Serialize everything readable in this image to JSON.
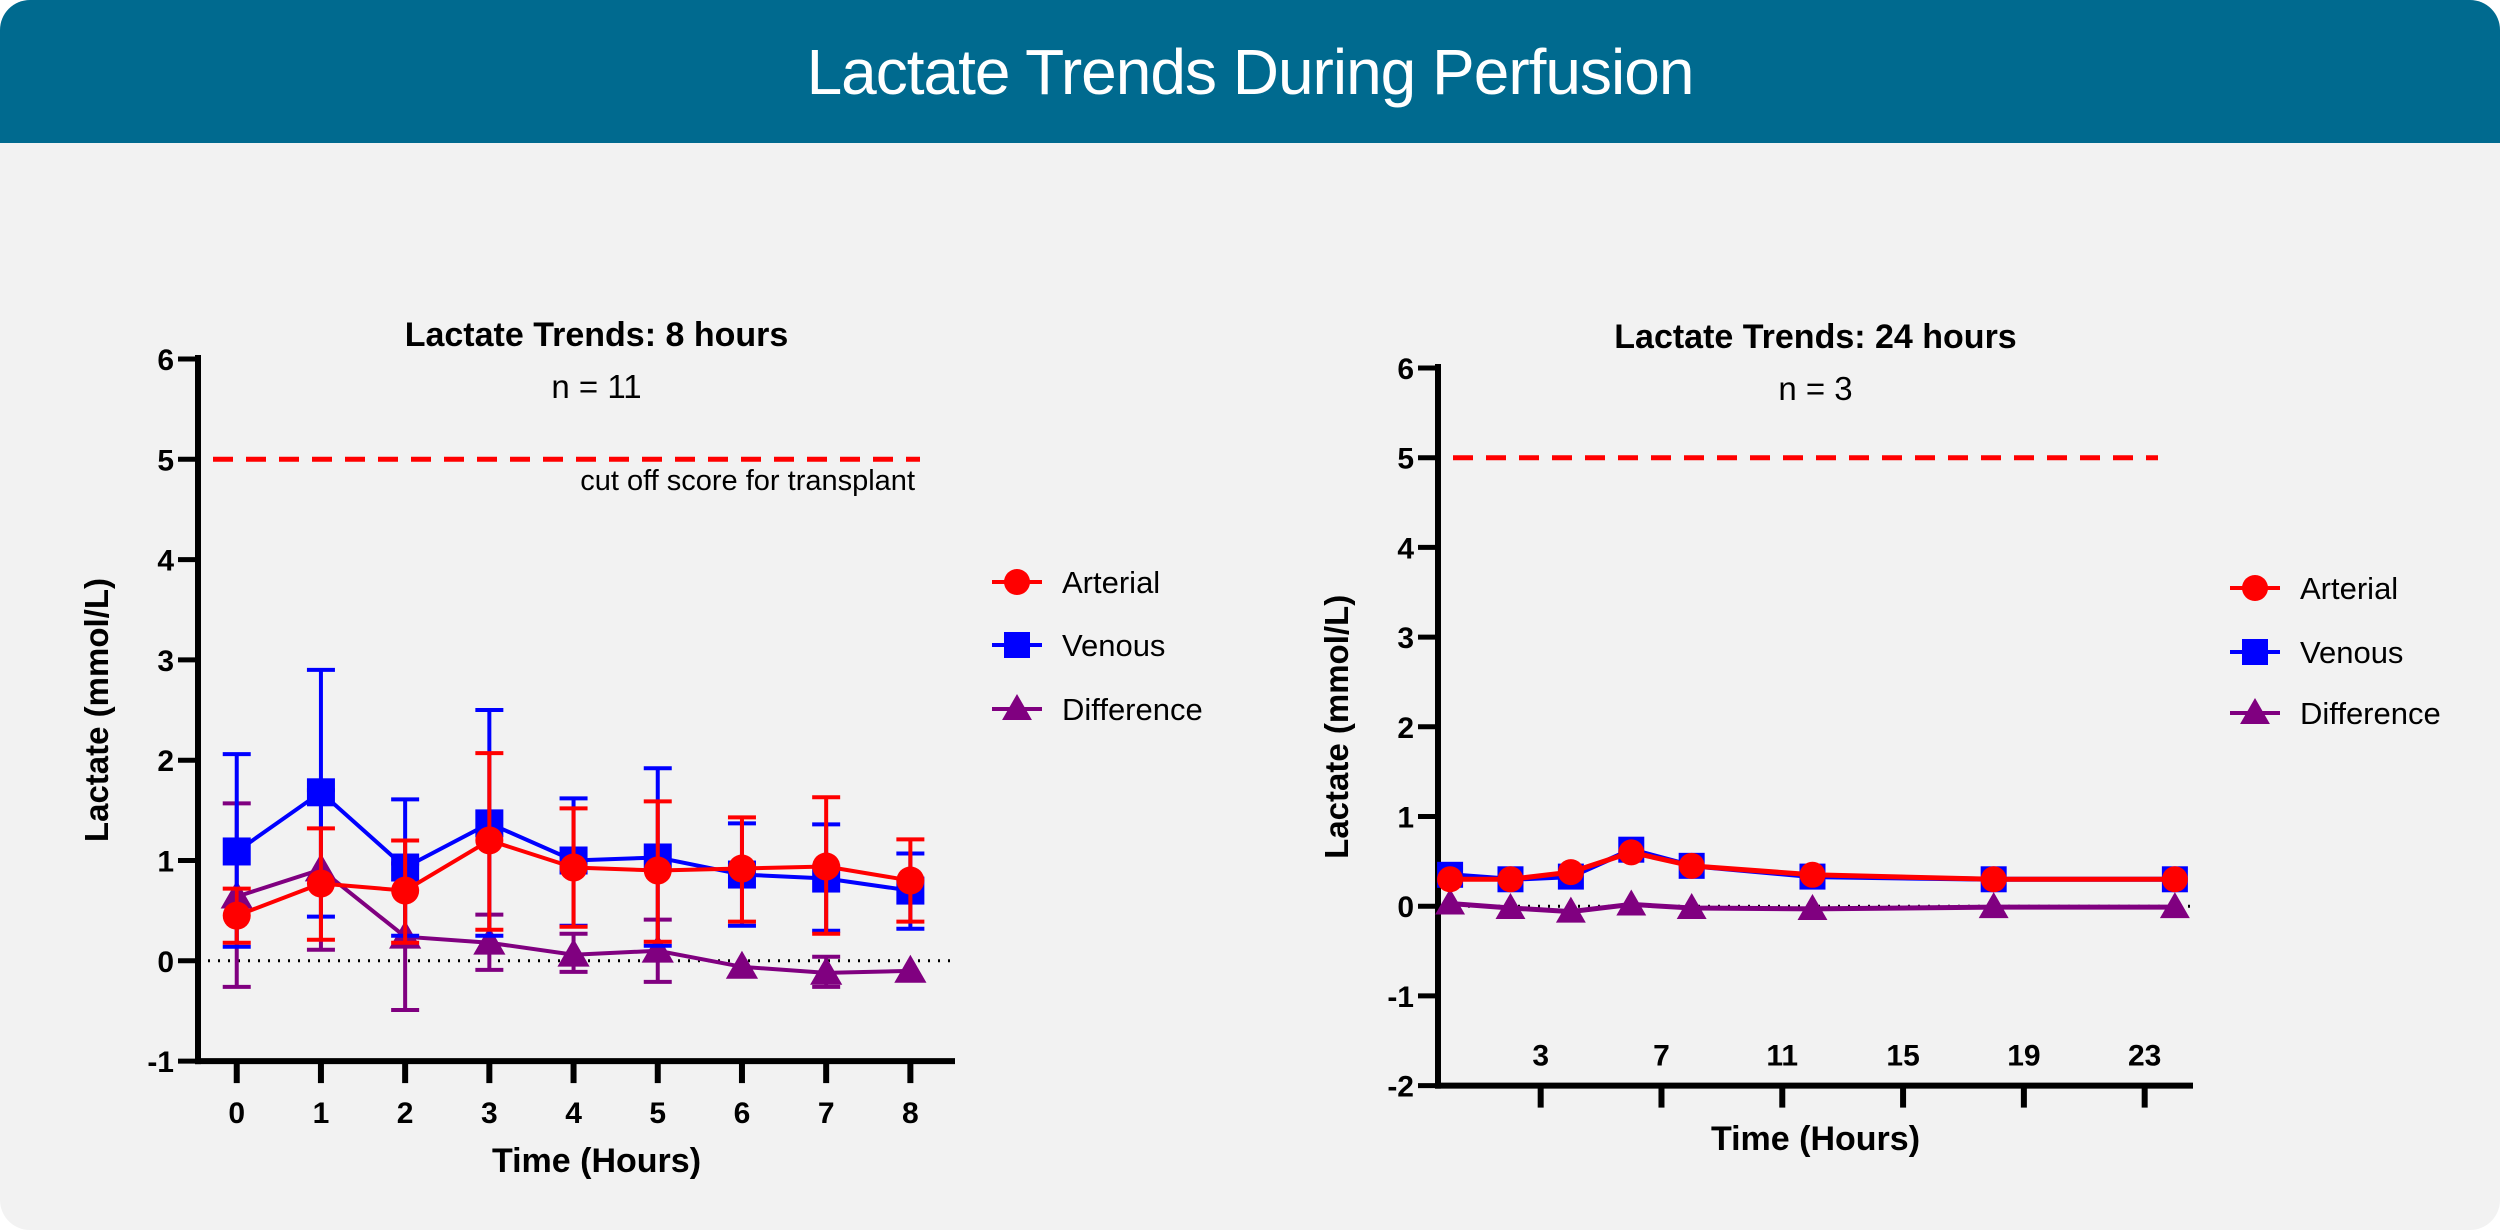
{
  "header": {
    "title": "Lactate Trends During Perfusion"
  },
  "colors": {
    "header_bg": "#006a8f",
    "arterial": "#ff0000",
    "venous": "#0000ff",
    "difference": "#800080",
    "cutoff": "#ff0000"
  },
  "chart_data": [
    {
      "type": "line",
      "title": "Lactate Trends: 8 hours",
      "subtitle": "n = 11",
      "xlabel": "Time (Hours)",
      "ylabel": "Lactate (mmol/L)",
      "xlim": [
        -0.46,
        8.53
      ],
      "ylim": [
        -1,
        6
      ],
      "xticks": [
        0,
        1,
        2,
        3,
        4,
        5,
        6,
        7,
        8
      ],
      "yticks": [
        -1,
        0,
        1,
        2,
        3,
        4,
        5,
        6
      ],
      "x": [
        0,
        1,
        2,
        3,
        4,
        5,
        6,
        7,
        8
      ],
      "reference_line": {
        "y": 5,
        "style": "dashed",
        "label": "cut off score for transplant"
      },
      "zero_line": {
        "y": 0,
        "style": "dotted"
      },
      "legend": "right",
      "series": [
        {
          "name": "Arterial",
          "marker": "circle",
          "color": "#ff0000",
          "values": [
            0.45,
            0.77,
            0.7,
            1.2,
            0.93,
            0.9,
            0.92,
            0.94,
            0.8
          ],
          "error_low": [
            0.18,
            0.21,
            0.18,
            0.31,
            0.34,
            0.19,
            0.39,
            0.27,
            0.39
          ],
          "error_high": [
            0.72,
            1.32,
            1.2,
            2.07,
            1.52,
            1.59,
            1.43,
            1.63,
            1.21
          ]
        },
        {
          "name": "Venous",
          "marker": "square",
          "color": "#0000ff",
          "values": [
            1.09,
            1.68,
            0.93,
            1.37,
            1.0,
            1.03,
            0.86,
            0.82,
            0.7
          ],
          "error_low": [
            0.14,
            0.44,
            0.25,
            0.25,
            0.35,
            0.15,
            0.35,
            0.3,
            0.32
          ],
          "error_high": [
            2.06,
            2.9,
            1.61,
            2.5,
            1.62,
            1.92,
            1.37,
            1.36,
            1.07
          ]
        },
        {
          "name": "Difference",
          "marker": "triangle",
          "color": "#800080",
          "values": [
            0.64,
            0.91,
            0.24,
            0.18,
            0.06,
            0.1,
            -0.06,
            -0.12,
            -0.1
          ],
          "error_low": [
            -0.26,
            0.11,
            -0.49,
            -0.09,
            -0.11,
            -0.21,
            null,
            -0.26,
            null
          ],
          "error_high": [
            1.57,
            1.7,
            0.97,
            0.46,
            0.27,
            0.41,
            null,
            0.04,
            null
          ]
        }
      ]
    },
    {
      "type": "line",
      "title": "Lactate Trends: 24 hours",
      "subtitle": "n = 3",
      "xlabel": "Time (Hours)",
      "ylabel": "Lactate (mmol/L)",
      "xlim": [
        -0.4,
        24.6
      ],
      "ylim": [
        -2,
        6
      ],
      "xticks": [
        3,
        7,
        11,
        15,
        19,
        23
      ],
      "yticks": [
        -2,
        -1,
        0,
        1,
        2,
        3,
        4,
        5,
        6
      ],
      "x": [
        0,
        2,
        4,
        6,
        8,
        12,
        18,
        24
      ],
      "reference_line": {
        "y": 5,
        "style": "dashed"
      },
      "zero_line": {
        "y": 0,
        "style": "dotted"
      },
      "legend": "right",
      "series": [
        {
          "name": "Arterial",
          "marker": "circle",
          "color": "#ff0000",
          "values": [
            0.3,
            0.3,
            0.38,
            0.6,
            0.45,
            0.35,
            0.3,
            0.3
          ]
        },
        {
          "name": "Venous",
          "marker": "square",
          "color": "#0000ff",
          "values": [
            0.35,
            0.3,
            0.33,
            0.63,
            0.45,
            0.33,
            0.3,
            0.3
          ]
        },
        {
          "name": "Difference",
          "marker": "triangle",
          "color": "#800080",
          "values": [
            0.03,
            -0.02,
            -0.06,
            0.02,
            -0.02,
            -0.03,
            -0.01,
            -0.01
          ]
        }
      ]
    }
  ]
}
